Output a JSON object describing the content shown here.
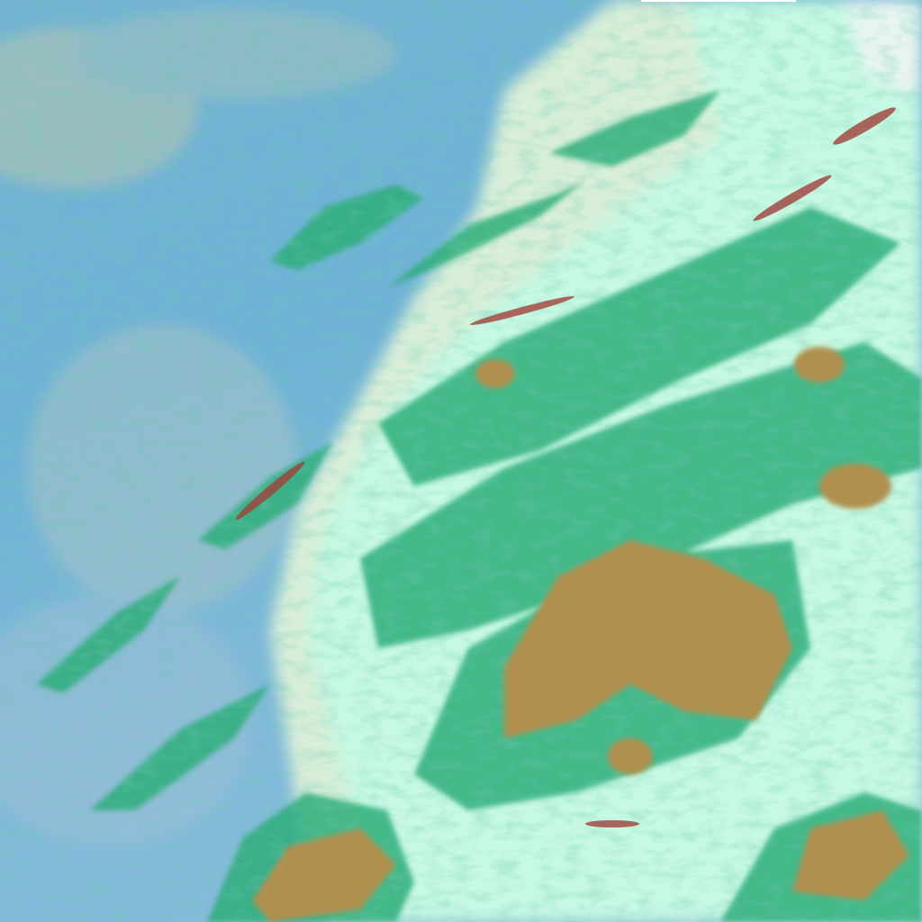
{
  "image": {
    "kind": "false-color satellite imagery",
    "colors": {
      "ocean": "#6fb2d6",
      "haze": "#a9c6c4",
      "low_cloud": "#d8f0d8",
      "bright_cloud": "#c8ffe8",
      "cloud_texture": "#2fae7a",
      "land": "#b09050",
      "high_cloud_red": "#a0403a"
    }
  }
}
